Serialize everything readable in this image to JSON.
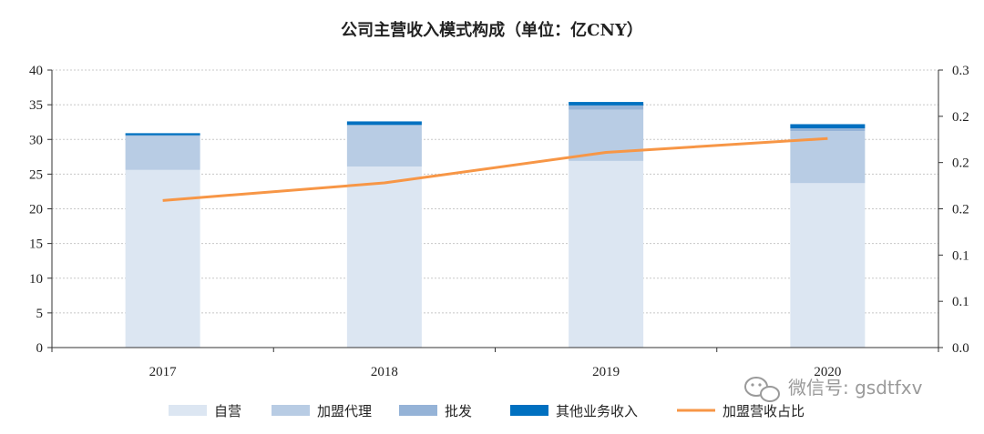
{
  "chart_data": {
    "type": "bar",
    "title": "公司主营收入模式构成（单位：亿CNY）",
    "categories": [
      "2017",
      "2018",
      "2019",
      "2020"
    ],
    "stacked": true,
    "series": [
      {
        "name": "自营",
        "kind": "bar",
        "axis": "left",
        "color": "#dce6f2",
        "values": [
          25.6,
          26.1,
          26.9,
          23.7
        ]
      },
      {
        "name": "加盟代理",
        "kind": "bar",
        "axis": "left",
        "color": "#b8cce4",
        "values": [
          4.9,
          5.9,
          7.4,
          7.5
        ]
      },
      {
        "name": "批发",
        "kind": "bar",
        "axis": "left",
        "color": "#95b3d7",
        "values": [
          0.1,
          0.1,
          0.6,
          0.4
        ]
      },
      {
        "name": "其他业务收入",
        "kind": "bar",
        "axis": "left",
        "color": "#0070c0",
        "values": [
          0.3,
          0.5,
          0.5,
          0.6
        ]
      },
      {
        "name": "加盟营收占比",
        "kind": "line",
        "axis": "right",
        "color": "#f79646",
        "values": [
          0.159,
          0.178,
          0.211,
          0.226
        ]
      }
    ],
    "ylim": [
      0,
      40
    ],
    "yticks": [
      "0",
      "5",
      "10",
      "15",
      "20",
      "25",
      "30",
      "35",
      "40"
    ],
    "y2lim": [
      0,
      0.3
    ],
    "y2ticks": [
      "0.0",
      "0.1",
      "0.1",
      "0.2",
      "0.2",
      "0.2",
      "0.3"
    ],
    "grid": true,
    "legend_position": "bottom"
  },
  "watermark": {
    "text": "微信号: gsdtfxv",
    "icon": "wechat-icon"
  }
}
